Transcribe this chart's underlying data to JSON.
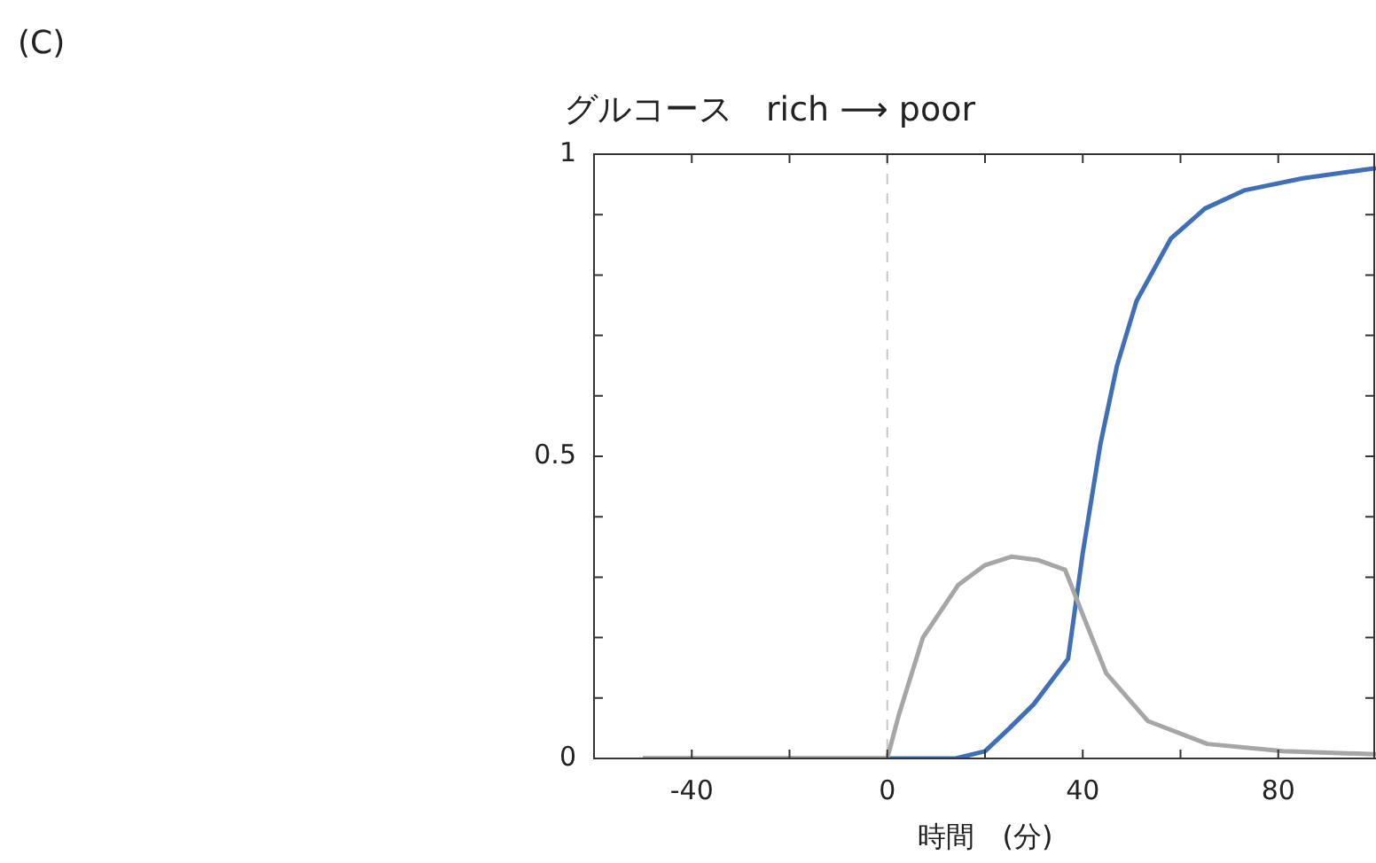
{
  "chart_data": {
    "type": "line",
    "title": "グルコース　rich ⟶ poor",
    "xlabel": "時間　(分)",
    "annotations": [
      "(C)"
    ],
    "xlim": [
      -60,
      100
    ],
    "ylim": [
      0,
      1
    ],
    "xticks": [
      -40,
      {
        "value": -20,
        "label": null
      },
      0,
      {
        "value": 20,
        "label": null
      },
      40,
      {
        "value": 60,
        "label": null
      },
      80
    ],
    "yticks": [
      0,
      {
        "value": 0.1,
        "label": null
      },
      {
        "value": 0.2,
        "label": null
      },
      {
        "value": 0.3,
        "label": null
      },
      {
        "value": 0.4,
        "label": null
      },
      0.5,
      {
        "value": 0.6,
        "label": null
      },
      {
        "value": 0.7,
        "label": null
      },
      {
        "value": 0.8,
        "label": null
      },
      {
        "value": 0.9,
        "label": null
      },
      1
    ],
    "grid": false,
    "legend": false,
    "ref_lines": [
      {
        "axis": "x",
        "value": 0,
        "color": "#c8c8c8",
        "line_style": "dashed"
      }
    ],
    "series": [
      {
        "color": "#a6a6a6",
        "x": [
          -50,
          0,
          2.4,
          7.3,
          14.5,
          20,
          25.5,
          31,
          36.4,
          40,
          44.8,
          53.3,
          65.5,
          81,
          100
        ],
        "values": [
          0,
          0,
          0.073,
          0.2,
          0.287,
          0.32,
          0.334,
          0.328,
          0.312,
          0.238,
          0.141,
          0.062,
          0.024,
          0.012,
          0.007
        ]
      },
      {
        "color": "#3e6fb8",
        "x": [
          -50,
          14,
          20,
          25,
          30,
          37,
          40,
          43.6,
          47,
          51,
          58,
          65,
          73,
          85,
          100
        ],
        "values": [
          0,
          0,
          0.012,
          0.05,
          0.09,
          0.165,
          0.34,
          0.52,
          0.65,
          0.757,
          0.86,
          0.91,
          0.94,
          0.96,
          0.977
        ]
      }
    ]
  }
}
